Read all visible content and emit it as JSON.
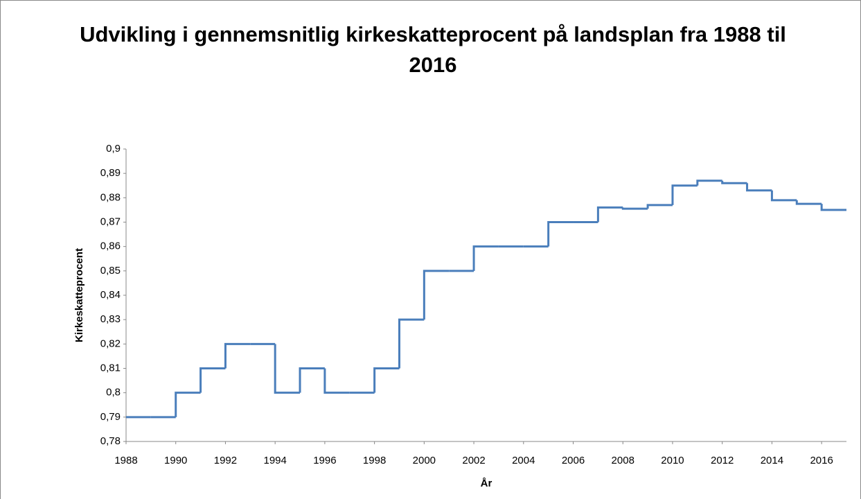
{
  "chart_data": {
    "type": "step",
    "title": "Udvikling i gennemsnitlig kirkeskatteprocent på landsplan fra 1988 til 2016",
    "x_label": "År",
    "y_label": "Kirkeskatteprocent",
    "x": [
      1988,
      1989,
      1990,
      1991,
      1992,
      1993,
      1994,
      1995,
      1996,
      1997,
      1998,
      1999,
      2000,
      2001,
      2002,
      2003,
      2004,
      2005,
      2006,
      2007,
      2008,
      2009,
      2010,
      2011,
      2012,
      2013,
      2014,
      2015,
      2016
    ],
    "series": [
      {
        "name": "Kirkeskatteprocent",
        "color": "#4a7ebb",
        "values": [
          0.79,
          0.79,
          0.8,
          0.81,
          0.82,
          0.82,
          0.8,
          0.81,
          0.8,
          0.8,
          0.81,
          0.83,
          0.85,
          0.85,
          0.86,
          0.86,
          0.86,
          0.87,
          0.87,
          0.876,
          0.8755,
          0.877,
          0.885,
          0.887,
          0.886,
          0.883,
          0.879,
          0.8775,
          0.875
        ]
      }
    ],
    "xlim": [
      1988,
      2017
    ],
    "xticks": [
      1988,
      1990,
      1992,
      1994,
      1996,
      1998,
      2000,
      2002,
      2004,
      2006,
      2008,
      2010,
      2012,
      2014,
      2016
    ],
    "ylim": [
      0.78,
      0.9
    ],
    "yticks": [
      {
        "value": 0.78,
        "label": "0,78"
      },
      {
        "value": 0.79,
        "label": "0,79"
      },
      {
        "value": 0.8,
        "label": "0,8"
      },
      {
        "value": 0.81,
        "label": "0,81"
      },
      {
        "value": 0.82,
        "label": "0,82"
      },
      {
        "value": 0.83,
        "label": "0,83"
      },
      {
        "value": 0.84,
        "label": "0,84"
      },
      {
        "value": 0.85,
        "label": "0,85"
      },
      {
        "value": 0.86,
        "label": "0,86"
      },
      {
        "value": 0.87,
        "label": "0,87"
      },
      {
        "value": 0.88,
        "label": "0,88"
      },
      {
        "value": 0.89,
        "label": "0,89"
      },
      {
        "value": 0.9,
        "label": "0,9"
      }
    ],
    "grid": false
  }
}
